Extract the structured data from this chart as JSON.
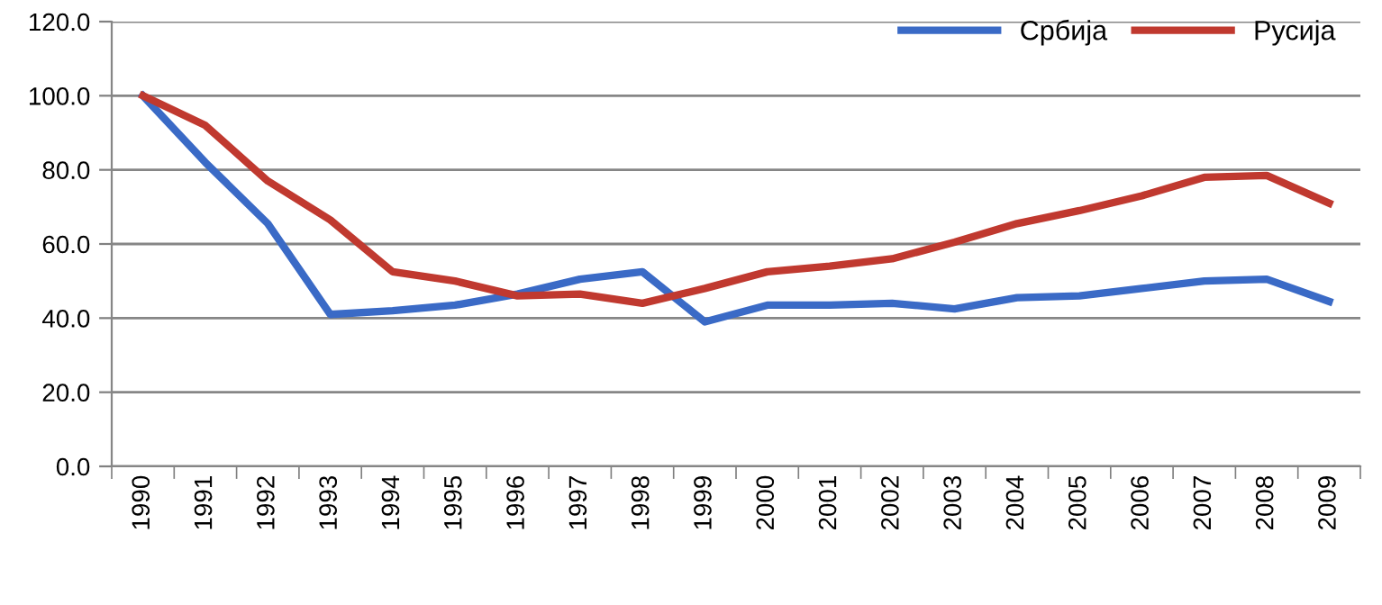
{
  "chart_data": {
    "type": "line",
    "categories": [
      "1990",
      "1991",
      "1992",
      "1993",
      "1994",
      "1995",
      "1996",
      "1997",
      "1998",
      "1999",
      "2000",
      "2001",
      "2002",
      "2003",
      "2004",
      "2005",
      "2006",
      "2007",
      "2008",
      "2009"
    ],
    "series": [
      {
        "name": "Србија",
        "color": "#3a6ac6",
        "values": [
          100,
          82,
          65.5,
          41,
          42,
          43.5,
          46.5,
          50.5,
          52.5,
          39,
          43.5,
          43.5,
          44,
          42.5,
          45.5,
          46,
          48,
          50,
          50.5,
          44.5
        ]
      },
      {
        "name": "Русија",
        "color": "#c0392f",
        "values": [
          100,
          92,
          77,
          66.5,
          52.5,
          50,
          46,
          46.5,
          44,
          48,
          52.5,
          54,
          56,
          60.5,
          65.5,
          69,
          73,
          78,
          78.5,
          71
        ]
      }
    ],
    "ylim": [
      0,
      120
    ],
    "yticks": [
      {
        "value": 0,
        "label": "0.0"
      },
      {
        "value": 20,
        "label": "20.0"
      },
      {
        "value": 40,
        "label": "40.0"
      },
      {
        "value": 60,
        "label": "60.0"
      },
      {
        "value": 80,
        "label": "80.0"
      },
      {
        "value": 100,
        "label": "100.0"
      },
      {
        "value": 120,
        "label": "120.0"
      }
    ],
    "grid": "y",
    "legend": "top right",
    "marker": "none",
    "line_style": "solid"
  }
}
